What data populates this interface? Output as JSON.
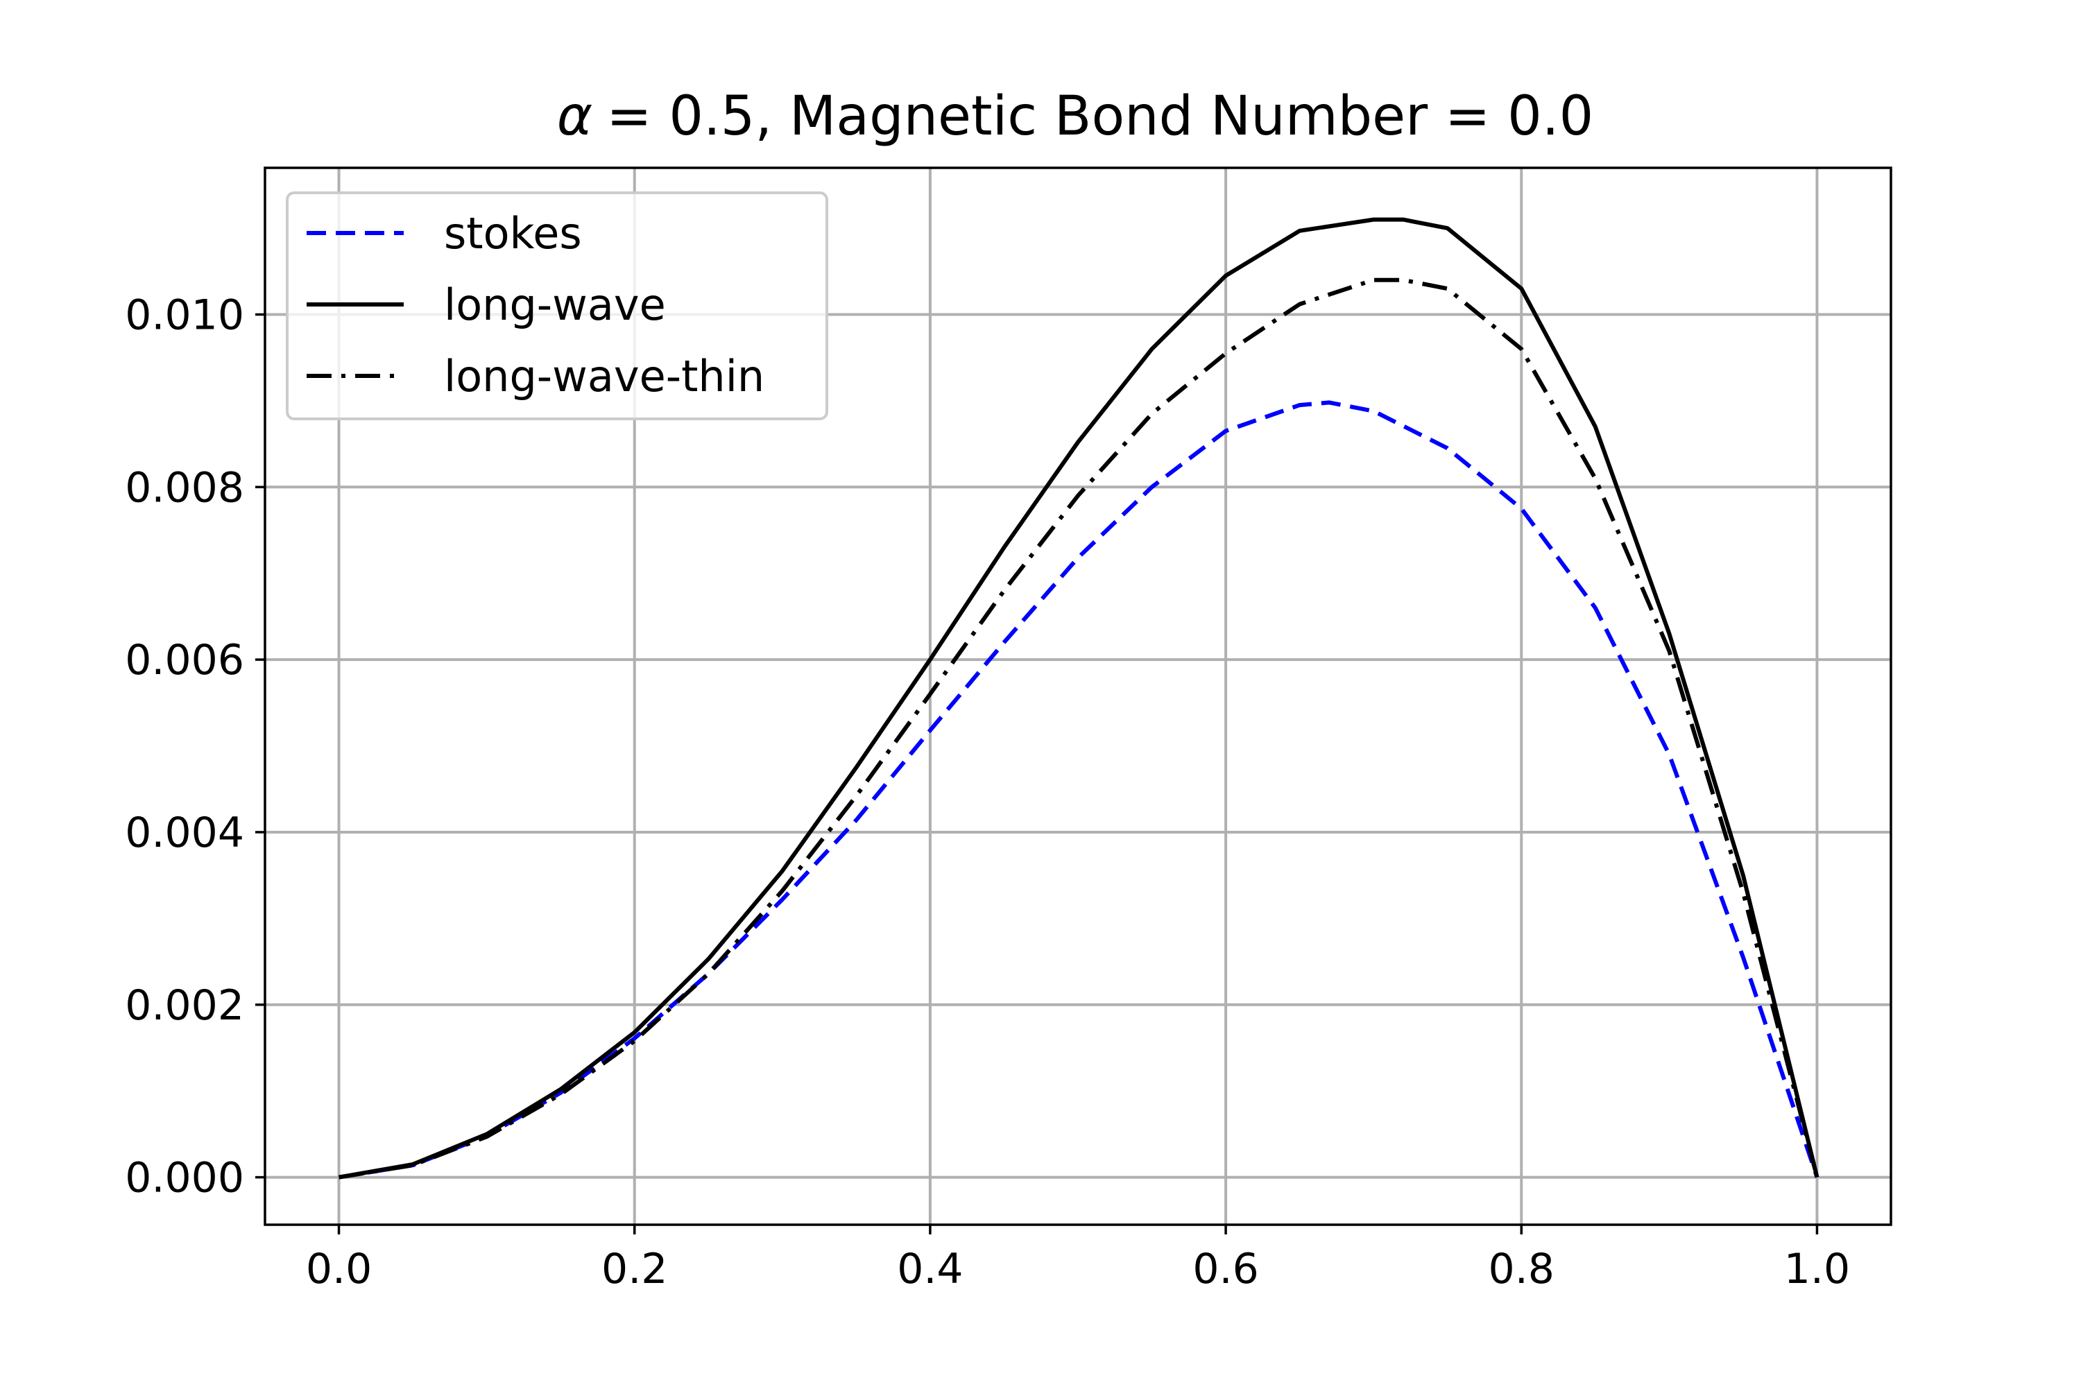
{
  "chart_data": {
    "type": "line",
    "title": "= 0.5, Magnetic Bond Number = 0.0",
    "title_symbol": "α",
    "xlabel": "",
    "ylabel": "",
    "xlim": [
      -0.05,
      1.05
    ],
    "ylim": [
      -0.00055,
      0.0117
    ],
    "xticks": [
      0.0,
      0.2,
      0.4,
      0.6,
      0.8,
      1.0
    ],
    "xtick_labels": [
      "0.0",
      "0.2",
      "0.4",
      "0.6",
      "0.8",
      "1.0"
    ],
    "yticks": [
      0.0,
      0.002,
      0.004,
      0.006,
      0.008,
      0.01
    ],
    "ytick_labels": [
      "0.000",
      "0.002",
      "0.004",
      "0.006",
      "0.008",
      "0.010"
    ],
    "grid": true,
    "legend_position": "upper-left",
    "series": [
      {
        "name": "stokes",
        "color": "#0000ff",
        "style": "dashed",
        "x": [
          0.0,
          0.05,
          0.1,
          0.15,
          0.2,
          0.25,
          0.3,
          0.35,
          0.4,
          0.45,
          0.5,
          0.55,
          0.6,
          0.65,
          0.67,
          0.7,
          0.75,
          0.8,
          0.85,
          0.9,
          0.95,
          1.0
        ],
        "y": [
          0.0,
          0.00014,
          0.00048,
          0.00098,
          0.00161,
          0.00236,
          0.00322,
          0.00414,
          0.00518,
          0.0062,
          0.00718,
          0.008,
          0.00865,
          0.00895,
          0.00898,
          0.00888,
          0.00845,
          0.00775,
          0.0066,
          0.0049,
          0.00255,
          0.0
        ]
      },
      {
        "name": "long-wave",
        "color": "#000000",
        "style": "solid",
        "x": [
          0.0,
          0.05,
          0.1,
          0.15,
          0.2,
          0.25,
          0.3,
          0.35,
          0.4,
          0.45,
          0.5,
          0.55,
          0.6,
          0.65,
          0.7,
          0.72,
          0.75,
          0.8,
          0.85,
          0.9,
          0.95,
          1.0
        ],
        "y": [
          0.0,
          0.00015,
          0.0005,
          0.00102,
          0.00168,
          0.00253,
          0.00355,
          0.00475,
          0.006,
          0.0073,
          0.00852,
          0.0096,
          0.01045,
          0.01097,
          0.0111,
          0.0111,
          0.011,
          0.0103,
          0.0087,
          0.0063,
          0.0035,
          0.0
        ]
      },
      {
        "name": "long-wave-thin",
        "color": "#000000",
        "style": "dashdot",
        "x": [
          0.0,
          0.05,
          0.1,
          0.15,
          0.2,
          0.25,
          0.3,
          0.35,
          0.4,
          0.45,
          0.5,
          0.55,
          0.6,
          0.65,
          0.7,
          0.72,
          0.75,
          0.8,
          0.85,
          0.9,
          0.95,
          1.0
        ],
        "y": [
          0.0,
          0.00014,
          0.00047,
          0.00096,
          0.00158,
          0.00236,
          0.00332,
          0.00442,
          0.0056,
          0.0068,
          0.0079,
          0.00885,
          0.00955,
          0.01012,
          0.0104,
          0.0104,
          0.0103,
          0.0096,
          0.0081,
          0.0061,
          0.0033,
          0.0
        ]
      }
    ]
  }
}
